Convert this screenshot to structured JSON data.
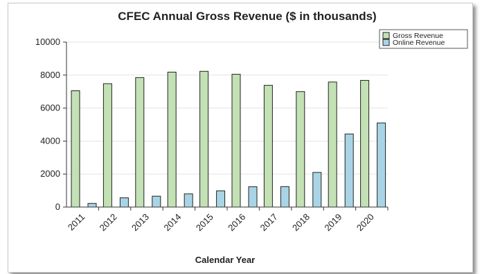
{
  "chart_data": {
    "type": "bar",
    "title": "CFEC Annual Gross Revenue ($ in thousands)",
    "xlabel": "Calendar Year",
    "ylabel": "",
    "categories": [
      "2011",
      "2012",
      "2013",
      "2014",
      "2015",
      "2016",
      "2017",
      "2018",
      "2019",
      "2020"
    ],
    "series": [
      {
        "name": "Gross Revenue",
        "color": "#c3e1b4",
        "values": [
          7050,
          7480,
          7850,
          8180,
          8230,
          8050,
          7380,
          7000,
          7580,
          7680
        ]
      },
      {
        "name": "Online Revenue",
        "color": "#a9d4e5",
        "values": [
          220,
          560,
          660,
          800,
          980,
          1230,
          1240,
          2100,
          4430,
          5100
        ]
      }
    ],
    "ylim": [
      0,
      10000
    ],
    "yticks": [
      "0",
      "2000",
      "4000",
      "6000",
      "8000",
      "10000"
    ],
    "grid": true,
    "legend_position": "top-right"
  }
}
